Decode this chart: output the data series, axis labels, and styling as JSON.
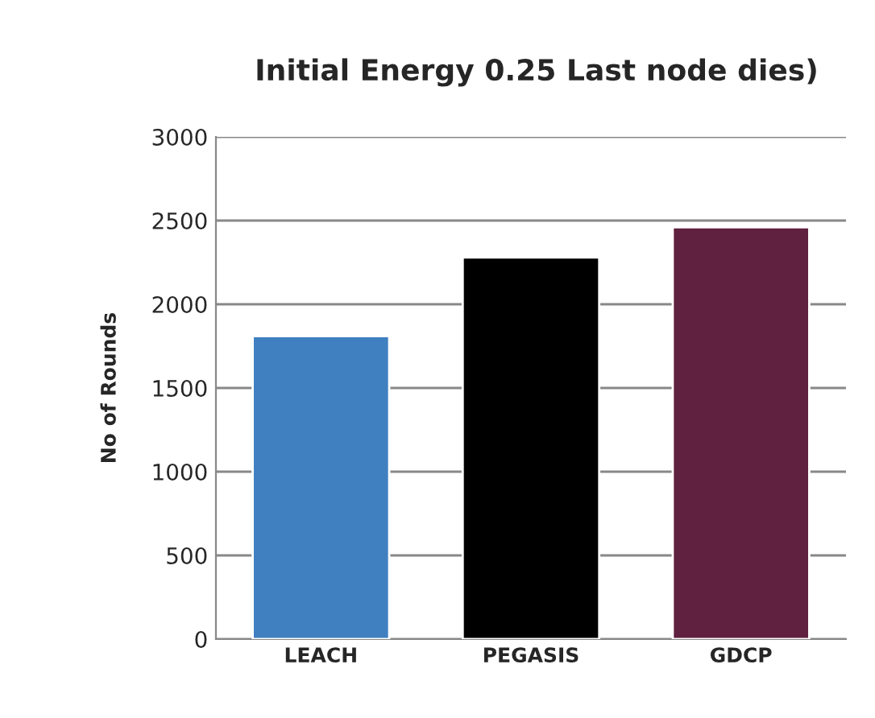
{
  "chart_data": {
    "type": "bar",
    "title": "Initial Energy 0.25 Last node dies)",
    "ylabel": "No of Rounds",
    "categories": [
      "LEACH",
      "PEGASIS",
      "GDCP"
    ],
    "values": [
      1810,
      2280,
      2460
    ],
    "colors": [
      "#4080c0",
      "#000000",
      "#60203f"
    ],
    "ylim": [
      0,
      3000
    ],
    "yticks": [
      0,
      500,
      1000,
      1500,
      2000,
      2500,
      3000
    ],
    "grid": "y",
    "legend": false
  }
}
